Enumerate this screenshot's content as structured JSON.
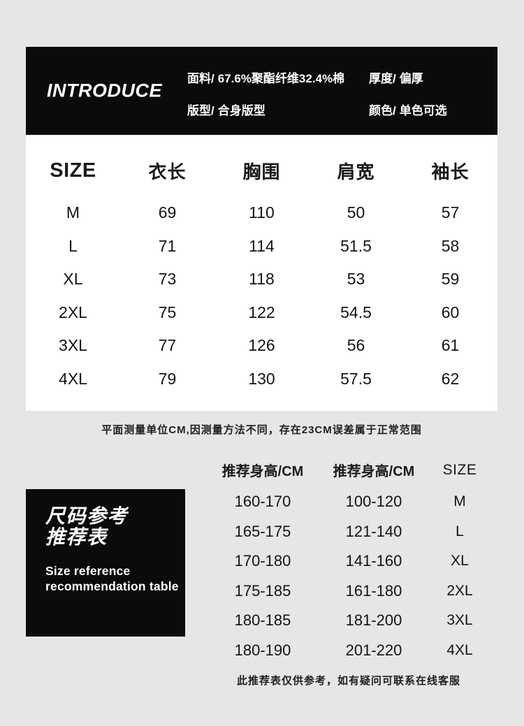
{
  "colors": {
    "background": "#e6e6e6",
    "panel": "#ffffff",
    "banner": "#0b0b0b",
    "text": "#1a1a1a",
    "inverse_text": "#ffffff"
  },
  "header": {
    "title": "INTRODUCE",
    "specs": [
      {
        "label": "面料/",
        "value": "67.6%聚酯纤维32.4%棉"
      },
      {
        "label": "厚度/",
        "value": "偏厚"
      },
      {
        "label": "版型/",
        "value": "合身版型"
      },
      {
        "label": "颜色/",
        "value": "单色可选"
      }
    ]
  },
  "size_table": {
    "headers": [
      "SIZE",
      "衣长",
      "胸围",
      "肩宽",
      "袖长"
    ],
    "rows": [
      [
        "M",
        "69",
        "110",
        "50",
        "57"
      ],
      [
        "L",
        "71",
        "114",
        "51.5",
        "58"
      ],
      [
        "XL",
        "73",
        "118",
        "53",
        "59"
      ],
      [
        "2XL",
        "75",
        "122",
        "54.5",
        "60"
      ],
      [
        "3XL",
        "77",
        "126",
        "56",
        "61"
      ],
      [
        "4XL",
        "79",
        "130",
        "57.5",
        "62"
      ]
    ],
    "note": "平面测量单位CM,因测量方法不同，存在23CM误差属于正常范围"
  },
  "reference": {
    "badge": {
      "title_line1": "尺码参考",
      "title_line2": "推荐表",
      "subtitle_line1": "Size reference",
      "subtitle_line2": "recommendation table"
    },
    "headers": [
      "推荐身高/CM",
      "推荐身高/CM",
      "SIZE"
    ],
    "rows": [
      [
        "160-170",
        "100-120",
        "M"
      ],
      [
        "165-175",
        "121-140",
        "L"
      ],
      [
        "170-180",
        "141-160",
        "XL"
      ],
      [
        "175-185",
        "161-180",
        "2XL"
      ],
      [
        "180-185",
        "181-200",
        "3XL"
      ],
      [
        "180-190",
        "201-220",
        "4XL"
      ]
    ],
    "note": "此推荐表仅供参考，如有疑问可联系在线客服"
  }
}
